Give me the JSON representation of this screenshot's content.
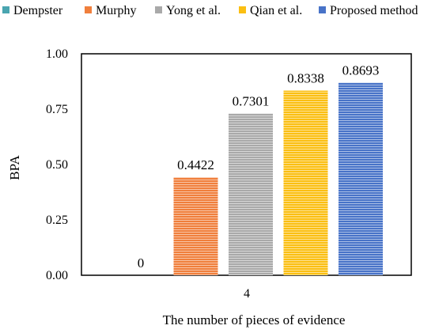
{
  "chart_data": {
    "type": "bar",
    "categories": [
      "4"
    ],
    "series": [
      {
        "name": "Dempster",
        "values": [
          0
        ],
        "label": "0",
        "color": "#4aa5b0",
        "hatch": false
      },
      {
        "name": "Murphy",
        "values": [
          0.4422
        ],
        "label": "0.4422",
        "color": "#f07f3c",
        "hatch": true
      },
      {
        "name": "Yong et al.",
        "values": [
          0.7301
        ],
        "label": "0.7301",
        "color": "#a9a9a9",
        "hatch": true
      },
      {
        "name": "Qian et al.",
        "values": [
          0.8338
        ],
        "label": "0.8338",
        "color": "#fbbf12",
        "hatch": true
      },
      {
        "name": "Proposed method",
        "values": [
          0.8693
        ],
        "label": "0.8693",
        "color": "#4873c8",
        "hatch": true
      }
    ],
    "xlabel": "The number of pieces of evidence",
    "ylabel": "BPA",
    "ylim": [
      0,
      1.0
    ],
    "yticks": [
      "0.00",
      "0.25",
      "0.50",
      "0.75",
      "1.00"
    ],
    "grid": false,
    "legend": "top"
  }
}
